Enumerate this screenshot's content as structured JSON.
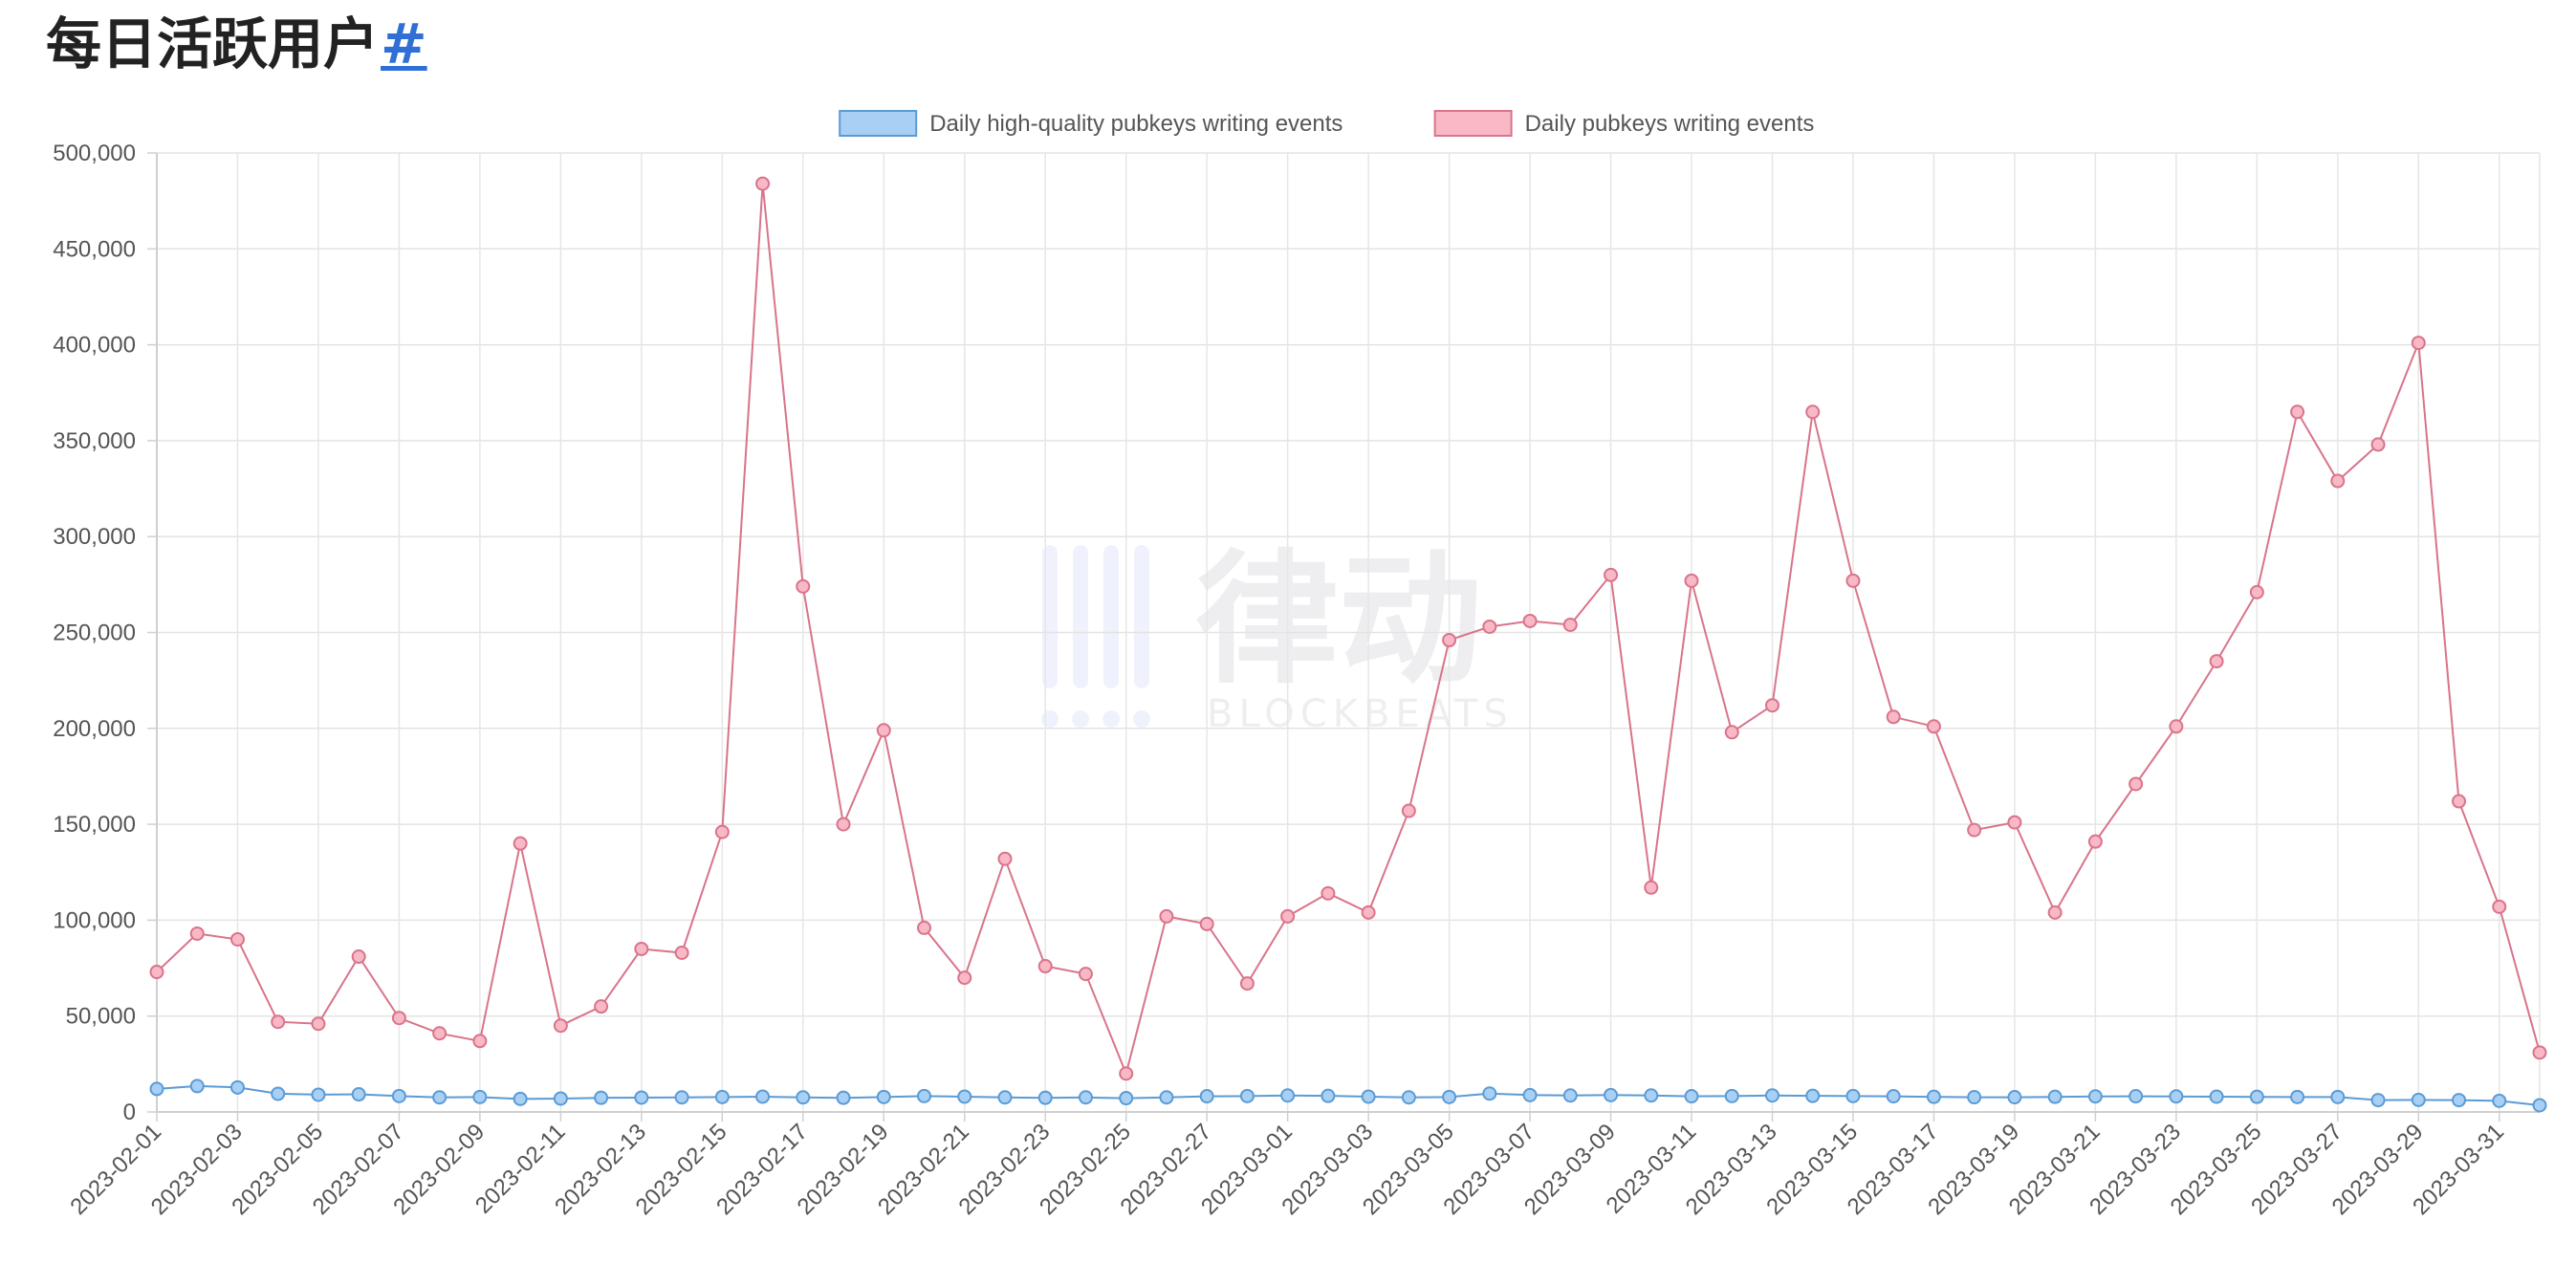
{
  "page": {
    "title": "每日活跃用户",
    "anchor": "#"
  },
  "watermark": {
    "text": "律动",
    "subtext": "BLOCKBEATS"
  },
  "chart_data": {
    "type": "line",
    "title": "",
    "xlabel": "",
    "ylabel": "",
    "ylim": [
      0,
      500000
    ],
    "yticks": [
      0,
      50000,
      100000,
      150000,
      200000,
      250000,
      300000,
      350000,
      400000,
      450000,
      500000
    ],
    "ytick_labels": [
      "0",
      "50,000",
      "100,000",
      "150,000",
      "200,000",
      "250,000",
      "300,000",
      "350,000",
      "400,000",
      "450,000",
      "500,000"
    ],
    "grid": true,
    "legend_position": "top-center",
    "x": [
      "2023-02-01",
      "2023-02-02",
      "2023-02-03",
      "2023-02-04",
      "2023-02-05",
      "2023-02-06",
      "2023-02-07",
      "2023-02-08",
      "2023-02-09",
      "2023-02-10",
      "2023-02-11",
      "2023-02-12",
      "2023-02-13",
      "2023-02-14",
      "2023-02-15",
      "2023-02-16",
      "2023-02-17",
      "2023-02-18",
      "2023-02-19",
      "2023-02-20",
      "2023-02-21",
      "2023-02-22",
      "2023-02-23",
      "2023-02-24",
      "2023-02-25",
      "2023-02-26",
      "2023-02-27",
      "2023-02-28",
      "2023-03-01",
      "2023-03-02",
      "2023-03-03",
      "2023-03-04",
      "2023-03-05",
      "2023-03-06",
      "2023-03-07",
      "2023-03-08",
      "2023-03-09",
      "2023-03-10",
      "2023-03-11",
      "2023-03-12",
      "2023-03-13",
      "2023-03-14",
      "2023-03-15",
      "2023-03-16",
      "2023-03-17",
      "2023-03-18",
      "2023-03-19",
      "2023-03-20",
      "2023-03-21",
      "2023-03-22",
      "2023-03-23",
      "2023-03-24",
      "2023-03-25",
      "2023-03-26",
      "2023-03-27",
      "2023-03-28",
      "2023-03-29",
      "2023-03-30",
      "2023-03-31",
      "2023-04-01"
    ],
    "xtick_labels": [
      "2023-02-01",
      "2023-02-03",
      "2023-02-05",
      "2023-02-07",
      "2023-02-09",
      "2023-02-11",
      "2023-02-13",
      "2023-02-15",
      "2023-02-17",
      "2023-02-19",
      "2023-02-21",
      "2023-02-23",
      "2023-02-25",
      "2023-02-27",
      "2023-03-01",
      "2023-03-03",
      "2023-03-05",
      "2023-03-07",
      "2023-03-09",
      "2023-03-11",
      "2023-03-13",
      "2023-03-15",
      "2023-03-17",
      "2023-03-19",
      "2023-03-21",
      "2023-03-23",
      "2023-03-25",
      "2023-03-27",
      "2023-03-29",
      "2023-03-31"
    ],
    "series": [
      {
        "name": "Daily high-quality pubkeys writing events",
        "color": "#5b9bd5",
        "fill": "#a8d0f5",
        "values": [
          12000,
          13500,
          12800,
          9500,
          9000,
          9200,
          8300,
          7600,
          7800,
          6800,
          7000,
          7400,
          7500,
          7600,
          7800,
          8000,
          7600,
          7400,
          7800,
          8300,
          8000,
          7600,
          7400,
          7600,
          7200,
          7600,
          8200,
          8300,
          8600,
          8400,
          8000,
          7600,
          7800,
          9600,
          8800,
          8600,
          8800,
          8600,
          8200,
          8300,
          8600,
          8400,
          8300,
          8200,
          7900,
          7700,
          7700,
          7900,
          8100,
          8200,
          8100,
          8000,
          7900,
          7800,
          7800,
          6200,
          6300,
          6200,
          5800,
          3500
        ]
      },
      {
        "name": "Daily pubkeys writing events",
        "color": "#d9748a",
        "fill": "#f8b8c6",
        "values": [
          73000,
          93000,
          90000,
          47000,
          46000,
          81000,
          49000,
          41000,
          37000,
          140000,
          45000,
          55000,
          85000,
          83000,
          146000,
          484000,
          274000,
          150000,
          199000,
          96000,
          70000,
          132000,
          76000,
          72000,
          20000,
          102000,
          98000,
          67000,
          102000,
          114000,
          104000,
          157000,
          246000,
          253000,
          256000,
          254000,
          280000,
          117000,
          277000,
          198000,
          212000,
          365000,
          277000,
          206000,
          201000,
          147000,
          151000,
          104000,
          141000,
          171000,
          201000,
          235000,
          271000,
          365000,
          329000,
          348000,
          401000,
          162000,
          107000,
          31000
        ]
      }
    ]
  }
}
